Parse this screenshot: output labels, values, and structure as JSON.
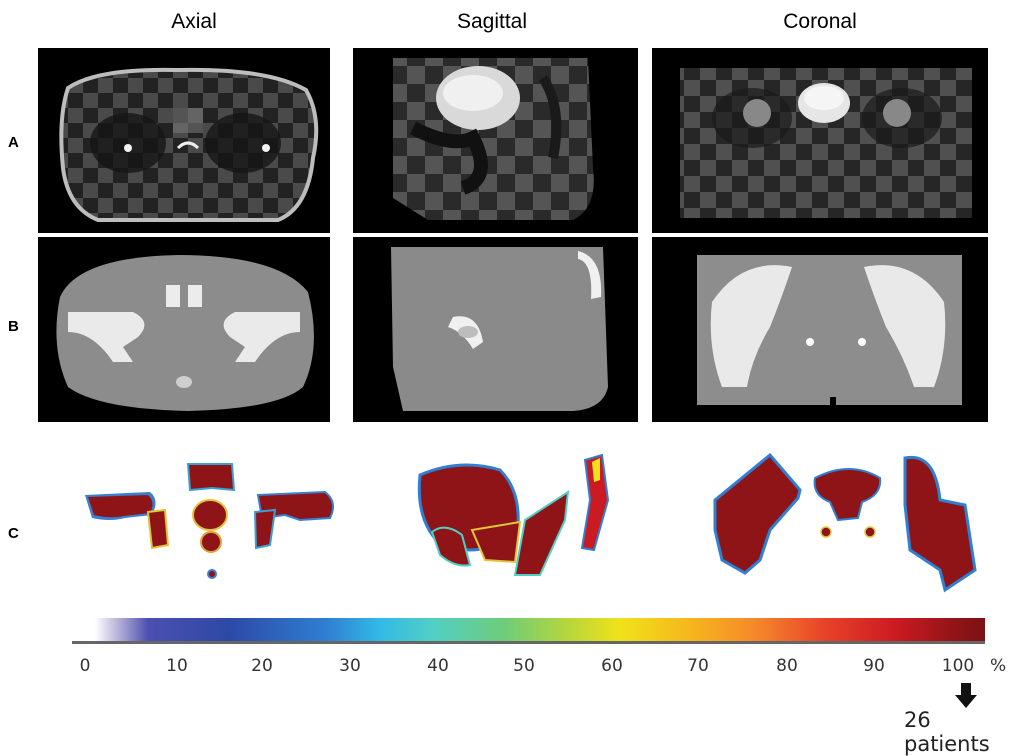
{
  "columns": {
    "axial": "Axial",
    "sagittal": "Sagittal",
    "coronal": "Coronal"
  },
  "rows": {
    "a": "A",
    "b": "B",
    "c": "C"
  },
  "colorbar": {
    "ticks": [
      "0",
      "10",
      "20",
      "30",
      "40",
      "50",
      "60",
      "70",
      "80",
      "90",
      "100"
    ],
    "unit": "%",
    "note": "26 patients"
  },
  "colors": {
    "max": "#7b1114",
    "bone": "#e8e8e8",
    "background": "#000000"
  }
}
